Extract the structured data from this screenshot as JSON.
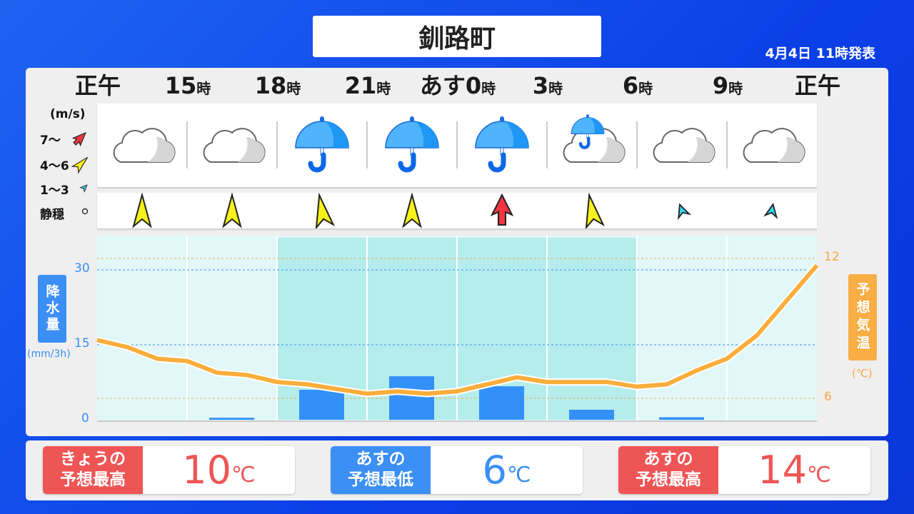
{
  "title": "釧路町",
  "issued": "4月4日 11時発表",
  "times": [
    {
      "n": "正午",
      "u": ""
    },
    {
      "n": "15",
      "u": "時"
    },
    {
      "n": "18",
      "u": "時"
    },
    {
      "n": "21",
      "u": "時"
    },
    {
      "n": "あす0",
      "u": "時"
    },
    {
      "n": "3",
      "u": "時"
    },
    {
      "n": "6",
      "u": "時"
    },
    {
      "n": "9",
      "u": "時"
    },
    {
      "n": "正午",
      "u": ""
    }
  ],
  "weather": [
    "cloudy",
    "cloudy",
    "rain",
    "rain",
    "rain",
    "cloudy-with-rain",
    "cloudy",
    "cloudy"
  ],
  "wind": [
    {
      "level": "4-6",
      "rot": 0
    },
    {
      "level": "4-6",
      "rot": 0
    },
    {
      "level": "4-6",
      "rot": -10
    },
    {
      "level": "4-6",
      "rot": 0
    },
    {
      "level": "7+",
      "rot": 0
    },
    {
      "level": "4-6",
      "rot": -10
    },
    {
      "level": "1-3",
      "rot": -20
    },
    {
      "level": "1-3",
      "rot": 10
    }
  ],
  "wind_legend": {
    "unit": "(m/s)",
    "items": [
      "7〜",
      "4〜6",
      "1〜3",
      "静穏"
    ]
  },
  "colors": {
    "7+": "#f2343f",
    "4-6": "#f7f21a",
    "1-3": "#2fd6e8",
    "precip": "#3290f8",
    "temp": "#f9ad3b"
  },
  "chart_data": {
    "type": "bar+line",
    "x_labels": [
      "正午",
      "15時",
      "18時",
      "21時",
      "あす0時",
      "3時",
      "6時",
      "9時",
      "正午"
    ],
    "precip": {
      "label": "降水量",
      "unit": "(mm/3h)",
      "ticks": [
        "0",
        "15",
        "30"
      ],
      "ylim": [
        0,
        30
      ],
      "periods": [
        "12-15",
        "15-18",
        "18-21",
        "21-0",
        "0-3",
        "3-6",
        "6-9",
        "9-12"
      ],
      "values": [
        0,
        0.4,
        6,
        8.7,
        6.7,
        2,
        0.5,
        0
      ]
    },
    "temp": {
      "label": "予想気温",
      "unit": "(℃)",
      "ticks": [
        "6",
        "12"
      ],
      "values": [
        8.5,
        8.2,
        7.7,
        7.6,
        7.1,
        7.0,
        6.7,
        6.6,
        6.4,
        6.2,
        6.3,
        6.2,
        6.3,
        6.6,
        6.9,
        6.7,
        6.7,
        6.7,
        6.5,
        6.6,
        7.2,
        7.7,
        8.7,
        10.2,
        11.7
      ]
    },
    "shaded_periods": "18時-6時"
  },
  "summary": [
    {
      "label1": "きょうの",
      "label2": "予想最高",
      "value": "10",
      "unit": "℃",
      "color": "#ee5555"
    },
    {
      "label1": "あすの",
      "label2": "予想最低",
      "value": "6",
      "unit": "℃",
      "color": "#3b8ff5"
    },
    {
      "label1": "あすの",
      "label2": "予想最高",
      "value": "14",
      "unit": "℃",
      "color": "#ee5555"
    }
  ]
}
